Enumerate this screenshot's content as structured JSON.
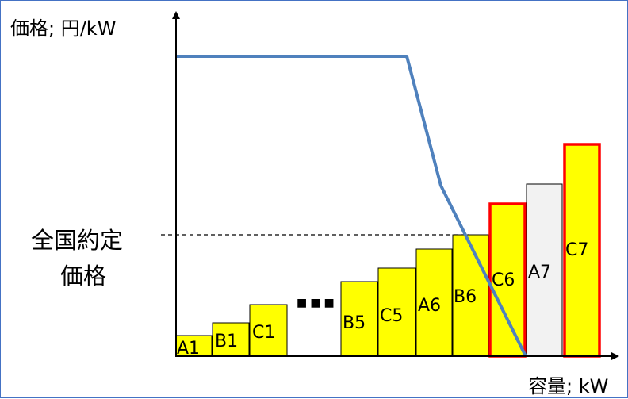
{
  "axes": {
    "y_label": "価格; 円/kW",
    "x_label": "容量; kW"
  },
  "clearing_price_label": [
    "全国約定",
    "価格"
  ],
  "ellipsis": "■■■",
  "colors": {
    "bar_fill": "#ffff00",
    "bar_stroke": "#000000",
    "bar_gray": "#f2f2f2",
    "highlight_stroke": "#ff0000",
    "demand_curve": "#4f81bd"
  },
  "bars": [
    {
      "label": "A1",
      "fill": "yellow",
      "highlight": false
    },
    {
      "label": "B1",
      "fill": "yellow",
      "highlight": false
    },
    {
      "label": "C1",
      "fill": "yellow",
      "highlight": false
    },
    {
      "label": "B5",
      "fill": "yellow",
      "highlight": false
    },
    {
      "label": "C5",
      "fill": "yellow",
      "highlight": false
    },
    {
      "label": "A6",
      "fill": "yellow",
      "highlight": false
    },
    {
      "label": "B6",
      "fill": "yellow",
      "highlight": false
    },
    {
      "label": "C6",
      "fill": "yellow",
      "highlight": true
    },
    {
      "label": "A7",
      "fill": "gray",
      "highlight": false
    },
    {
      "label": "C7",
      "fill": "yellow",
      "highlight": true
    }
  ]
}
